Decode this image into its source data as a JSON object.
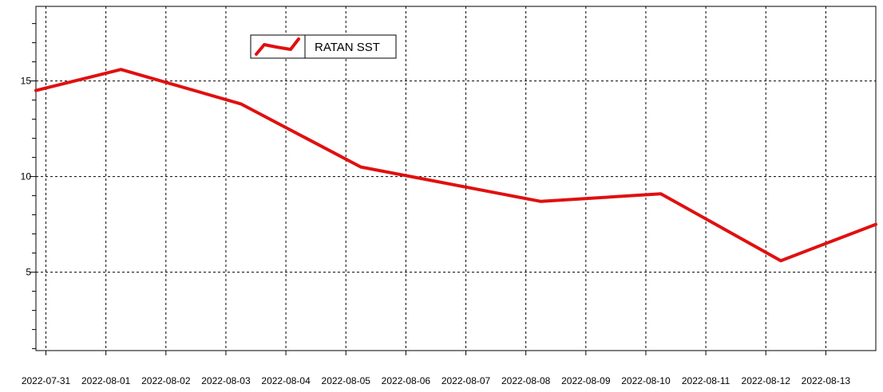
{
  "chart_data": {
    "type": "line",
    "title": "",
    "xlabel": "",
    "ylabel": "",
    "x_tick_labels": [
      "2022-07-31",
      "2022-08-01",
      "2022-08-02",
      "2022-08-03",
      "2022-08-04",
      "2022-08-05",
      "2022-08-06",
      "2022-08-07",
      "2022-08-08",
      "2022-08-09",
      "2022-08-10",
      "2022-08-11",
      "2022-08-12",
      "2022-08-13"
    ],
    "y_ticks": [
      5,
      10,
      15
    ],
    "ylim": [
      0.9,
      18.9
    ],
    "xlim": [
      "2022-07-30 20:00",
      "2022-08-13 20:00"
    ],
    "grid": true,
    "legend_position": "top-left",
    "series": [
      {
        "name": "RATAN SST",
        "color": "#e01010",
        "x": [
          "2022-07-30 20:00",
          "2022-08-01 06:00",
          "2022-08-03 06:00",
          "2022-08-05 06:00",
          "2022-08-08 06:00",
          "2022-08-10 06:00",
          "2022-08-12 06:00",
          "2022-08-13 20:00"
        ],
        "y": [
          14.5,
          15.6,
          13.8,
          10.5,
          8.7,
          9.1,
          5.6,
          7.5
        ]
      }
    ]
  }
}
